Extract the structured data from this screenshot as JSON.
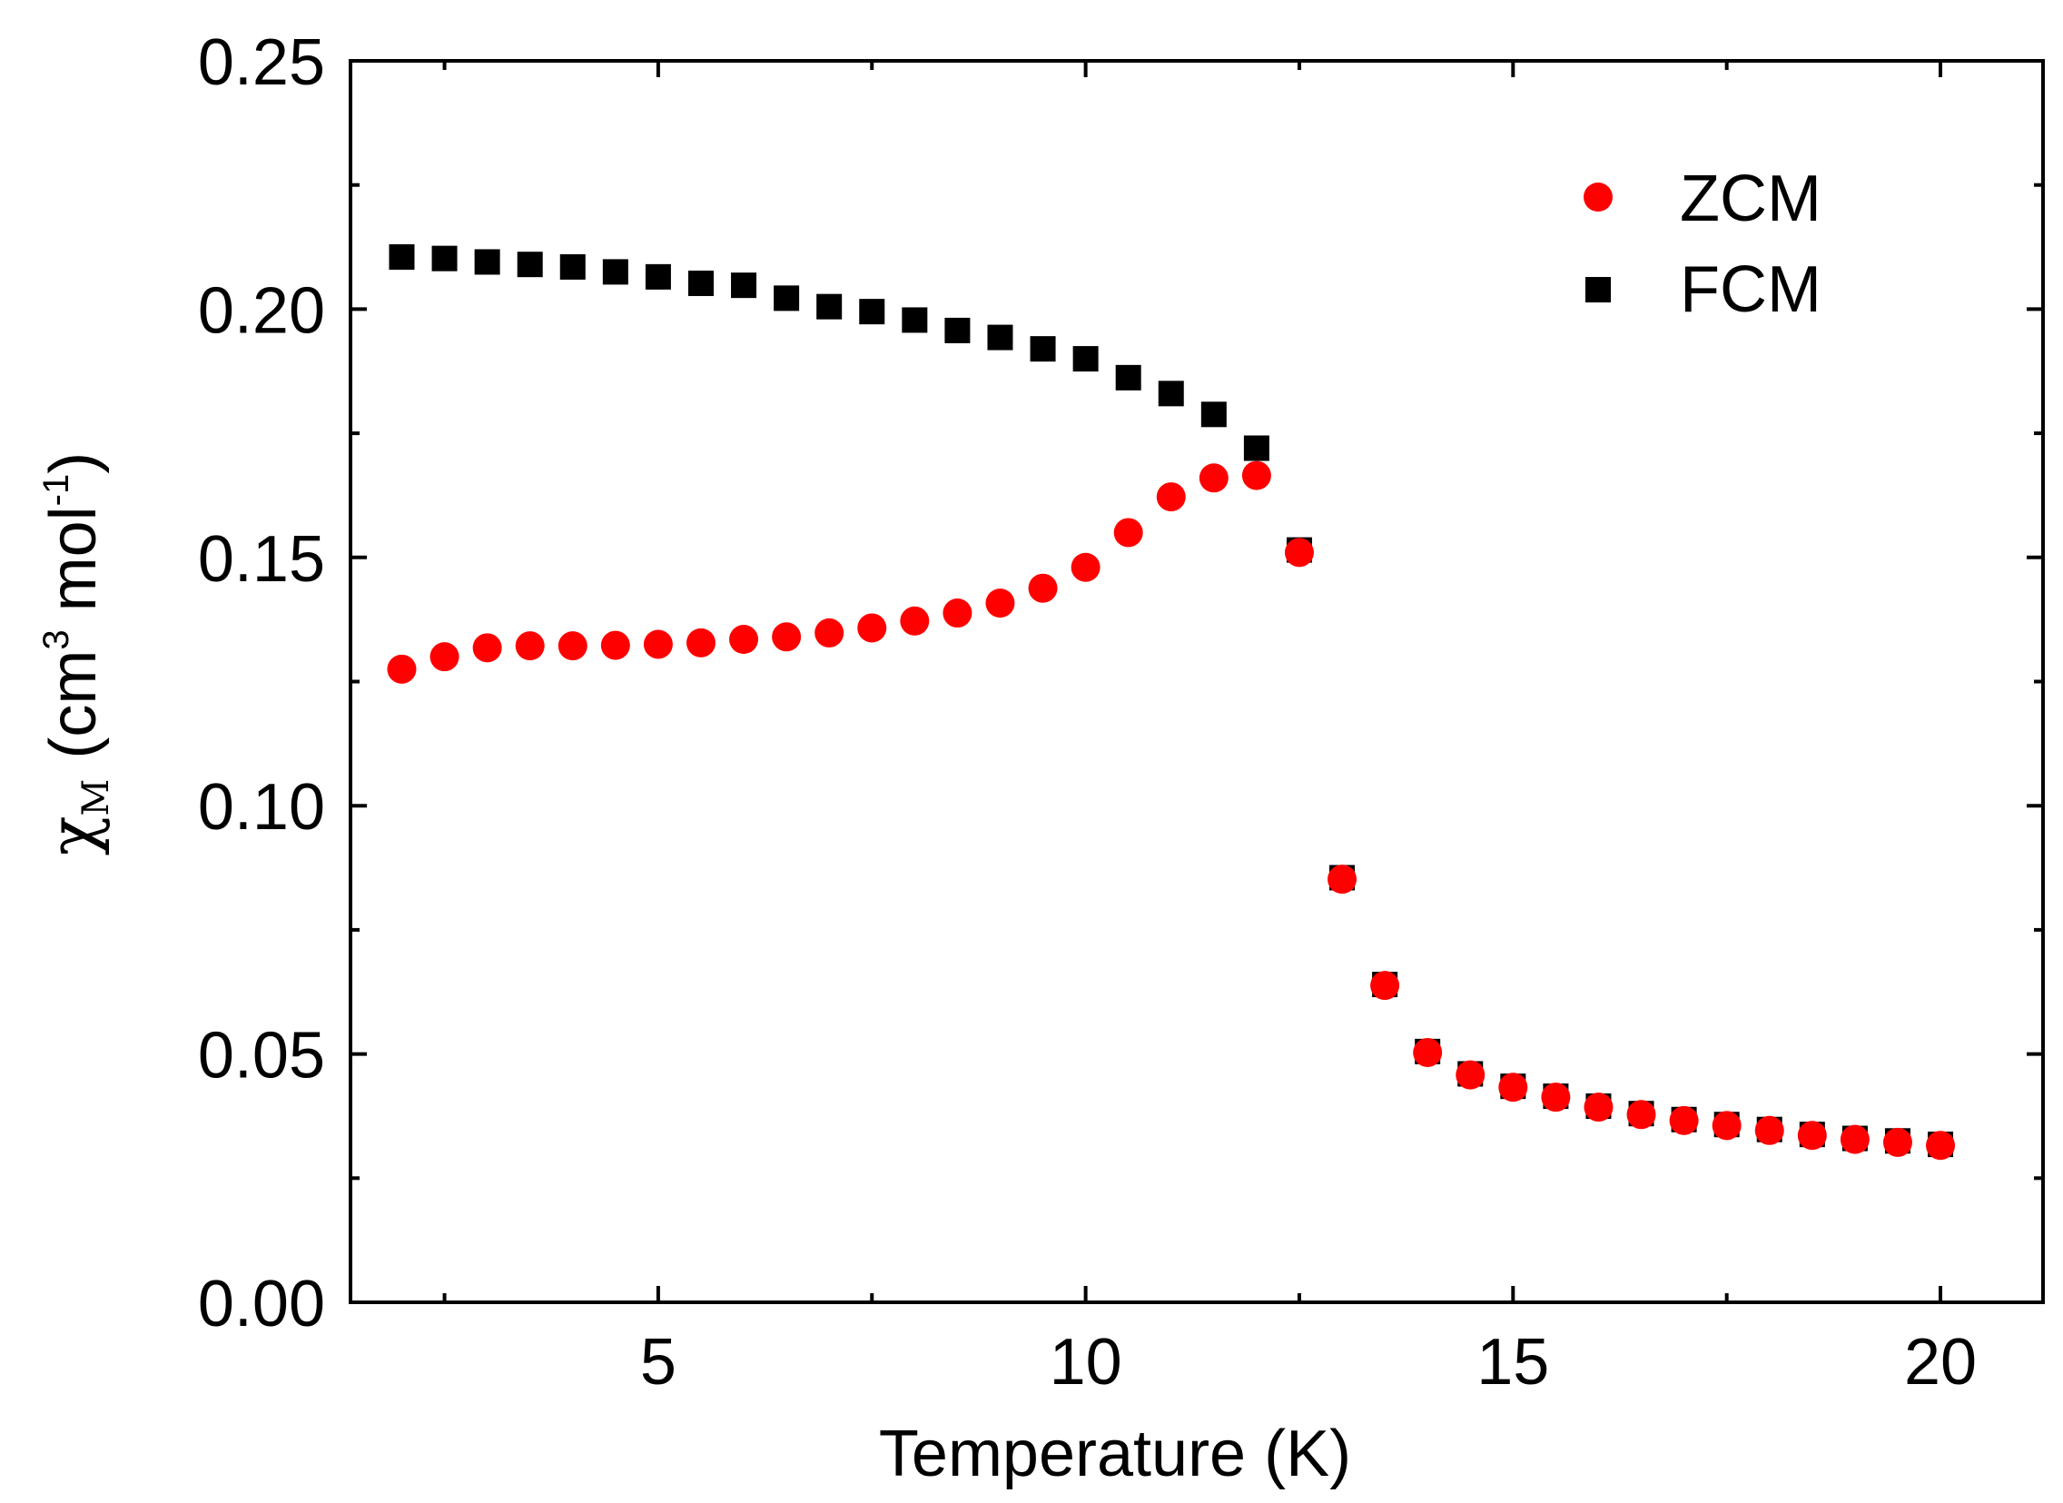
{
  "chart_data": {
    "type": "scatter",
    "xlabel": "Temperature (K)",
    "ylabel": {
      "symbol": "χ",
      "subscript": "M",
      "open": "(cm",
      "sup1": "3",
      "mid": " mol",
      "sup2": "-1",
      "close": ")"
    },
    "xlim": [
      1.4,
      21.2
    ],
    "ylim": [
      0.0,
      0.25
    ],
    "xticks": [
      5,
      10,
      15,
      20
    ],
    "xtick_labels": [
      "5",
      "10",
      "15",
      "20"
    ],
    "yticks": [
      0.0,
      0.05,
      0.1,
      0.15,
      0.2,
      0.25
    ],
    "ytick_labels": [
      "0.00",
      "0.05",
      "0.10",
      "0.15",
      "0.20",
      "0.25"
    ],
    "legend_position": "top-right",
    "series": [
      {
        "name": "FCM",
        "marker": "square",
        "color": "#000000",
        "x": [
          2,
          2.5,
          3,
          3.5,
          4,
          4.5,
          5,
          5.5,
          6,
          6.5,
          7,
          7.5,
          8,
          8.5,
          9,
          9.5,
          10,
          10.5,
          11,
          11.5,
          12,
          12.5,
          13,
          13.5,
          14,
          14.5,
          15,
          15.5,
          16,
          16.5,
          17,
          17.5,
          18,
          18.5,
          19,
          19.5,
          20
        ],
        "y": [
          0.2105,
          0.2102,
          0.2095,
          0.209,
          0.2085,
          0.2075,
          0.2065,
          0.2052,
          0.2048,
          0.2022,
          0.2005,
          0.1995,
          0.1978,
          0.1957,
          0.1943,
          0.192,
          0.19,
          0.1862,
          0.183,
          0.1788,
          0.172,
          0.1515,
          0.0855,
          0.064,
          0.0505,
          0.046,
          0.0435,
          0.0415,
          0.0395,
          0.038,
          0.0368,
          0.0358,
          0.0348,
          0.0338,
          0.033,
          0.0325,
          0.0318
        ]
      },
      {
        "name": "ZCM",
        "marker": "circle",
        "color": "#ff0000",
        "x": [
          2,
          2.5,
          3,
          3.5,
          4,
          4.5,
          5,
          5.5,
          6,
          6.5,
          7,
          7.5,
          8,
          8.5,
          9,
          9.5,
          10,
          10.5,
          11,
          11.5,
          12,
          12.5,
          13,
          13.5,
          14,
          14.5,
          15,
          15.5,
          16,
          16.5,
          17,
          17.5,
          18,
          18.5,
          19,
          19.5,
          20
        ],
        "y": [
          0.1275,
          0.13,
          0.1318,
          0.1322,
          0.1322,
          0.1323,
          0.1325,
          0.1328,
          0.1335,
          0.134,
          0.1348,
          0.1358,
          0.1372,
          0.1388,
          0.1408,
          0.1438,
          0.148,
          0.155,
          0.1622,
          0.166,
          0.1665,
          0.151,
          0.0852,
          0.0638,
          0.0503,
          0.0458,
          0.0433,
          0.0413,
          0.0393,
          0.0378,
          0.0366,
          0.0356,
          0.0346,
          0.0336,
          0.0328,
          0.0322,
          0.0316
        ]
      }
    ]
  }
}
